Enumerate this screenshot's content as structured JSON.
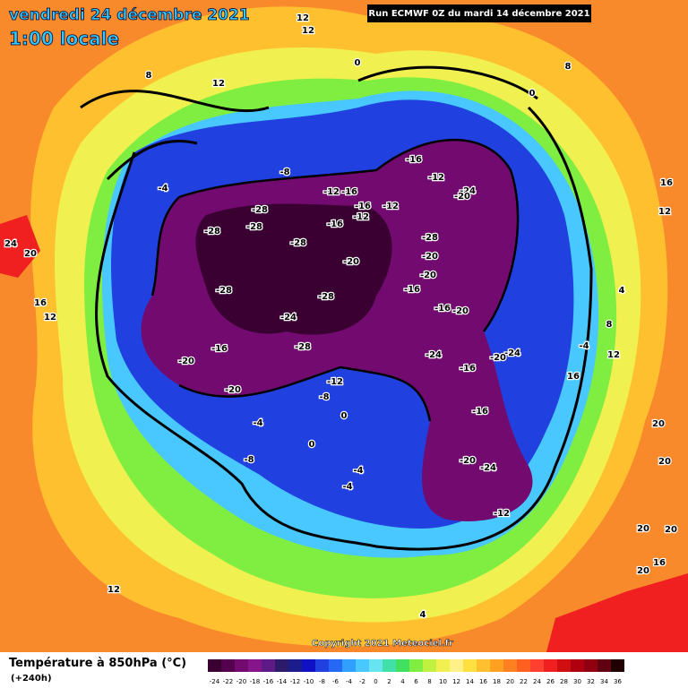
{
  "header": {
    "date": "vendredi 24 décembre 2021",
    "time": "1:00 locale",
    "run": "Run ECMWF 0Z du mardi 14 décembre 2021"
  },
  "copyright": "Copyright 2021 Meteociel.fr",
  "legend": {
    "title": "Température à 850hPa (°C)",
    "lead": "(+240h)",
    "values": [
      -24,
      -22,
      -20,
      -18,
      -16,
      -14,
      -12,
      -10,
      -8,
      -6,
      -4,
      -2,
      0,
      2,
      4,
      6,
      8,
      10,
      12,
      14,
      16,
      18,
      20,
      22,
      24,
      26,
      28,
      30,
      32,
      34,
      36
    ],
    "colors": [
      "#3a0032",
      "#55004e",
      "#720a70",
      "#86148a",
      "#5e1a86",
      "#2c1a6a",
      "#1c1c8c",
      "#1010c4",
      "#2040e0",
      "#2468f4",
      "#30a0ff",
      "#48c8ff",
      "#66e4f0",
      "#40e0a8",
      "#40e060",
      "#80ee40",
      "#c0f040",
      "#f0f050",
      "#fff088",
      "#ffe040",
      "#ffc030",
      "#ffa020",
      "#ff8020",
      "#ff6020",
      "#ff4030",
      "#f02020",
      "#d01010",
      "#b00010",
      "#900010",
      "#600010",
      "#200000"
    ]
  },
  "contour_labels": [
    12,
    12,
    12,
    8,
    8,
    0,
    0,
    -16,
    -12,
    -8,
    -12,
    -16,
    -16,
    -12,
    -12,
    -24,
    -20,
    -4,
    -28,
    -28,
    -28,
    -28,
    -16,
    -20,
    -28,
    -28,
    -20,
    -20,
    -16,
    -28,
    -24,
    -16,
    -20,
    -28,
    -24,
    -16,
    -20,
    -24,
    -20,
    -20,
    -12,
    -8,
    -4,
    0,
    -16,
    -16,
    -20,
    -24,
    -12,
    -8,
    -4,
    -4,
    0,
    24,
    20,
    16,
    12,
    16,
    12,
    16,
    20,
    20,
    20,
    16,
    20,
    20,
    12,
    4,
    -4,
    8,
    4,
    12
  ]
}
